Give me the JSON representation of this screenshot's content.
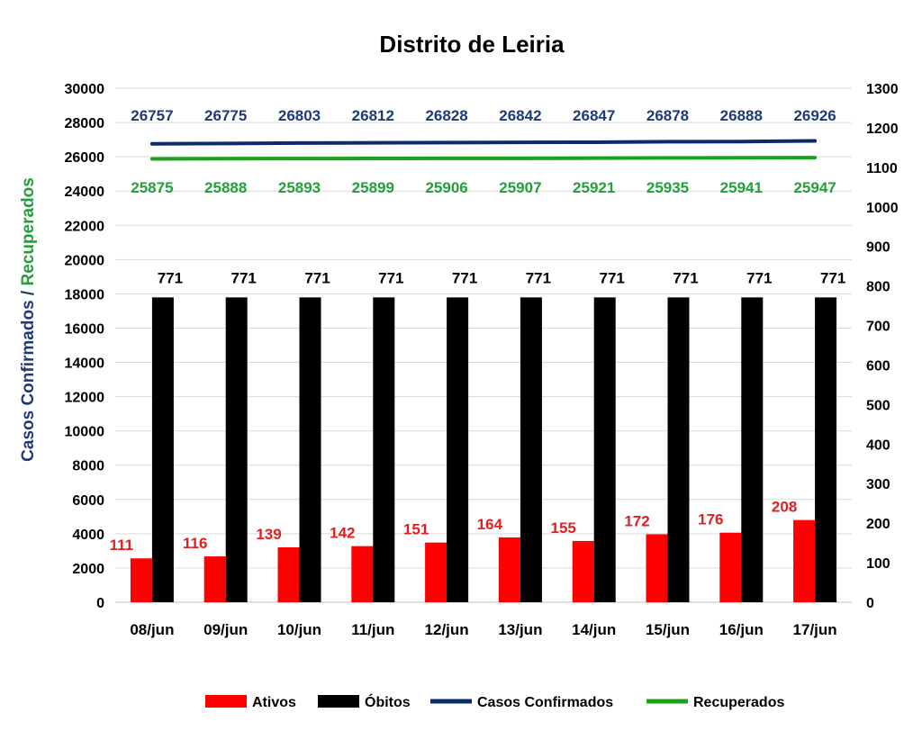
{
  "chart_data": {
    "type": "bar",
    "title": "Distrito de Leiria",
    "categories": [
      "08/jun",
      "09/jun",
      "10/jun",
      "11/jun",
      "12/jun",
      "13/jun",
      "14/jun",
      "15/jun",
      "16/jun",
      "17/jun"
    ],
    "ylabel_left_part1": "Casos Confirmados",
    "ylabel_left_separator": " / ",
    "ylabel_left_part2": "Recuperados",
    "ylim_left": [
      0,
      30000
    ],
    "yticks_left": [
      "0",
      "2000",
      "4000",
      "6000",
      "8000",
      "10000",
      "12000",
      "14000",
      "16000",
      "18000",
      "20000",
      "22000",
      "24000",
      "26000",
      "28000",
      "30000"
    ],
    "ylim_right": [
      0,
      1300
    ],
    "yticks_right": [
      "0",
      "100",
      "200",
      "300",
      "400",
      "500",
      "600",
      "700",
      "800",
      "900",
      "1000",
      "1100",
      "1200",
      "1300"
    ],
    "grid": true,
    "legend_position": "bottom",
    "series": [
      {
        "name": "Ativos",
        "type": "bar",
        "axis": "right",
        "color": "#ff0000",
        "label_color": "#e02020",
        "values": [
          111,
          116,
          139,
          142,
          151,
          164,
          155,
          172,
          176,
          208
        ]
      },
      {
        "name": "Óbitos",
        "type": "bar",
        "axis": "right",
        "color": "#000000",
        "label_color": "#000000",
        "values": [
          771,
          771,
          771,
          771,
          771,
          771,
          771,
          771,
          771,
          771
        ]
      },
      {
        "name": "Casos Confirmados",
        "type": "line",
        "axis": "left",
        "color": "#0d2b6b",
        "label_color": "#1f3a78",
        "values": [
          26757,
          26775,
          26803,
          26812,
          26828,
          26842,
          26847,
          26878,
          26888,
          26926
        ]
      },
      {
        "name": "Recuperados",
        "type": "line",
        "axis": "left",
        "color": "#1aa31a",
        "label_color": "#22a03a",
        "values": [
          25875,
          25888,
          25893,
          25899,
          25906,
          25907,
          25921,
          25935,
          25941,
          25947
        ]
      }
    ]
  }
}
